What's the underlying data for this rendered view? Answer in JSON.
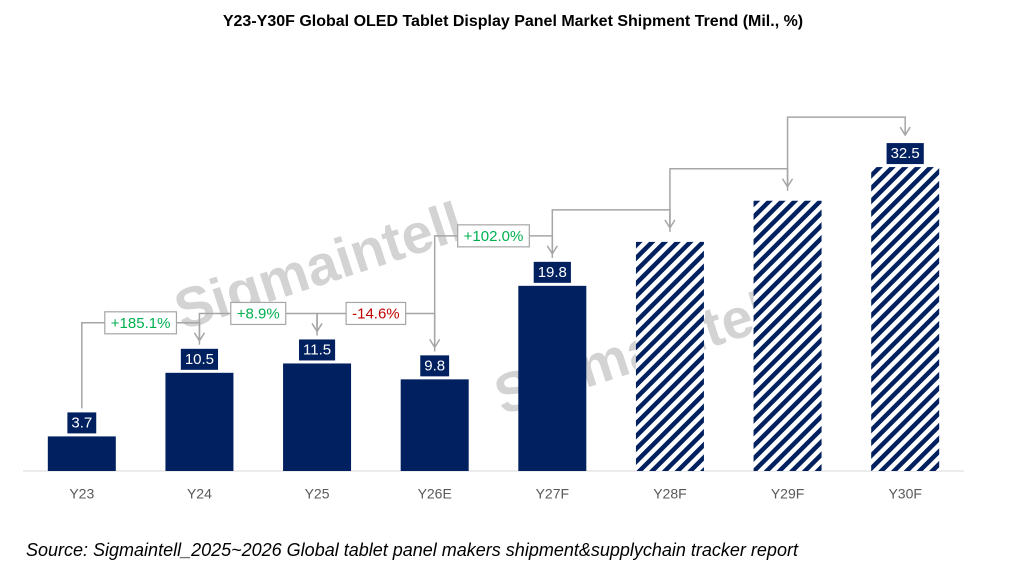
{
  "chart_data": {
    "type": "bar",
    "title": "Y23-Y30F Global OLED Tablet Display Panel Market Shipment Trend (Mil., %)",
    "categories": [
      "Y23",
      "Y24",
      "Y25",
      "Y26E",
      "Y27F",
      "Y28F",
      "Y29F",
      "Y30F"
    ],
    "values": [
      3.7,
      10.5,
      11.5,
      9.8,
      19.8,
      24.5,
      28.9,
      32.5
    ],
    "value_labels": [
      "3.7",
      "10.5",
      "11.5",
      "9.8",
      "19.8",
      null,
      null,
      "32.5"
    ],
    "hatched": [
      false,
      false,
      false,
      false,
      false,
      true,
      true,
      true
    ],
    "color": "#002060",
    "ylim": [
      0,
      35
    ],
    "growth": [
      {
        "label": "+185.1%",
        "color": "#00b050"
      },
      {
        "label": "+8.9%",
        "color": "#00b050"
      },
      {
        "label": "-14.6%",
        "color": "#c00000"
      },
      {
        "label": "+102.0%",
        "color": "#00b050"
      },
      {
        "label": null,
        "color": null
      },
      {
        "label": null,
        "color": null
      },
      {
        "label": null,
        "color": null
      }
    ],
    "watermark": "Sigmaintell",
    "source": "Source: Sigmaintell_2025~2026 Global tablet panel makers shipment&supplychain tracker report"
  }
}
